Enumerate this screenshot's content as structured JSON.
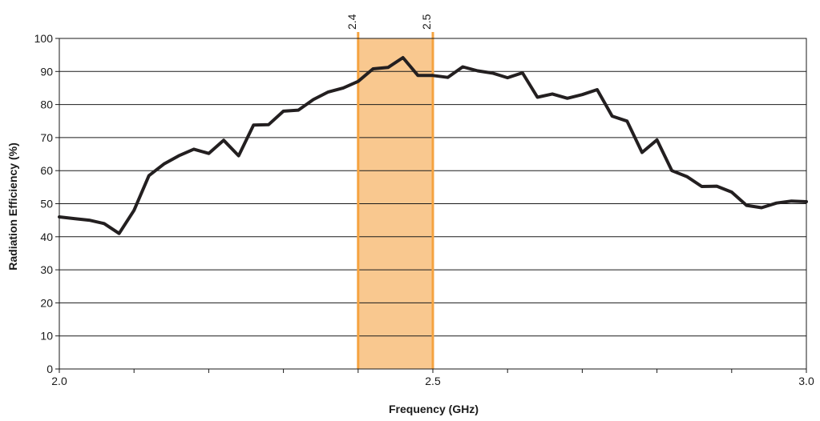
{
  "chart_data": {
    "type": "line",
    "title": "",
    "xlabel": "Frequency (GHz)",
    "ylabel": "Radiation Efficiency (%)",
    "xlim": [
      2.0,
      3.0
    ],
    "ylim": [
      0,
      100
    ],
    "x_ticks": [
      {
        "value": 2.0,
        "label": "2.0"
      },
      {
        "value": 2.5,
        "label": "2.5"
      },
      {
        "value": 3.0,
        "label": "3.0"
      }
    ],
    "x_minor_step": 0.1,
    "y_ticks": [
      {
        "value": 0,
        "label": "0"
      },
      {
        "value": 10,
        "label": "10"
      },
      {
        "value": 20,
        "label": "20"
      },
      {
        "value": 30,
        "label": "30"
      },
      {
        "value": 40,
        "label": "40"
      },
      {
        "value": 50,
        "label": "50"
      },
      {
        "value": 60,
        "label": "60"
      },
      {
        "value": 70,
        "label": "70"
      },
      {
        "value": 80,
        "label": "80"
      },
      {
        "value": 90,
        "label": "90"
      },
      {
        "value": 100,
        "label": "100"
      }
    ],
    "grid": "horizontal",
    "band": {
      "from": 2.4,
      "to": 2.5,
      "from_label": "2.4",
      "to_label": "2.5",
      "fill": "#f9c88f",
      "edge": "#f5a340"
    },
    "series": [
      {
        "color": "#231f20",
        "x": [
          2.0,
          2.02,
          2.04,
          2.06,
          2.08,
          2.1,
          2.12,
          2.14,
          2.16,
          2.18,
          2.2,
          2.22,
          2.24,
          2.26,
          2.28,
          2.3,
          2.32,
          2.34,
          2.36,
          2.38,
          2.4,
          2.42,
          2.44,
          2.46,
          2.48,
          2.5,
          2.52,
          2.54,
          2.56,
          2.58,
          2.6,
          2.62,
          2.64,
          2.66,
          2.68,
          2.7,
          2.72,
          2.74,
          2.76,
          2.78,
          2.8,
          2.82,
          2.84,
          2.86,
          2.88,
          2.9,
          2.92,
          2.94,
          2.96,
          2.98,
          3.0
        ],
        "values": [
          46,
          45.5,
          45,
          44,
          41,
          48,
          58.5,
          62,
          64.5,
          66.5,
          65.2,
          69.2,
          64.5,
          73.8,
          73.9,
          78,
          78.3,
          81.5,
          83.8,
          85,
          87,
          90.8,
          91.2,
          94.2,
          88.8,
          88.8,
          88.2,
          91.4,
          90.2,
          89.5,
          88.1,
          89.6,
          82.2,
          83.2,
          81.9,
          83,
          84.5,
          76.5,
          75,
          65.5,
          69.3,
          60,
          58.2,
          55.2,
          55.3,
          53.5,
          49.5,
          48.8,
          50.2,
          50.8,
          50.6
        ]
      }
    ]
  }
}
